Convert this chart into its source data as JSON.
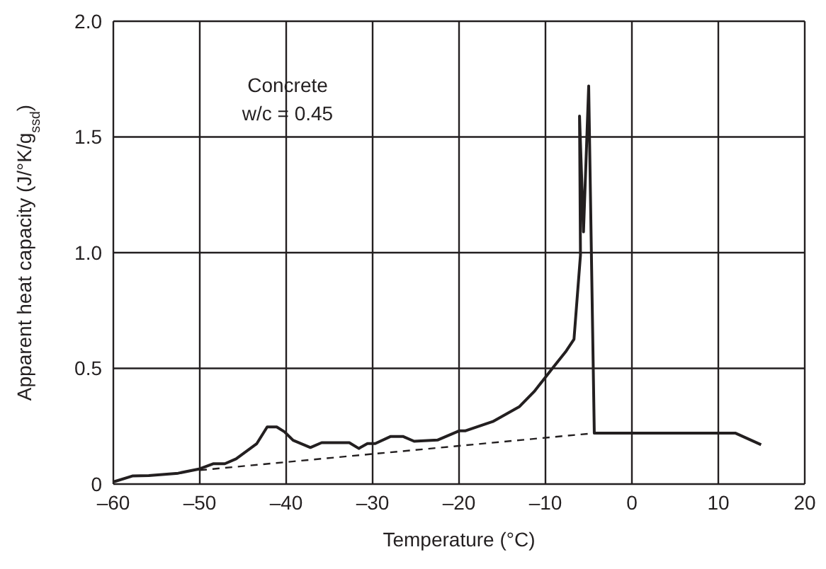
{
  "chart_data": {
    "type": "line",
    "xlabel": "Temperature (°C)",
    "ylabel": "Apparent heat capacity (J/°K/g$_{ssd}$)",
    "annotations": [
      "Concrete",
      "w/c = 0.45"
    ],
    "xlim": [
      -60,
      20
    ],
    "xticks": [
      {
        "value": -60,
        "label": "–60"
      },
      {
        "value": -50,
        "label": "–50"
      },
      {
        "value": -40,
        "label": "–40"
      },
      {
        "value": -30,
        "label": "–30"
      },
      {
        "value": -20,
        "label": "–20"
      },
      {
        "value": -10,
        "label": "–10"
      },
      0,
      10,
      20
    ],
    "ylim": [
      0,
      2
    ],
    "yticks": [
      0,
      0.5,
      {
        "value": 1,
        "label": "1.0"
      },
      1.5,
      {
        "value": 2,
        "label": "2.0"
      }
    ],
    "grid": true,
    "marker": "none",
    "series": [
      {
        "color": "#231f20",
        "line_style": "solid",
        "x": [
          -59.95,
          -57.8,
          -55.9,
          -52.5,
          -50,
          -48.4,
          -47.1,
          -45.8,
          -43.4,
          -42.2,
          -41.1,
          -40.2,
          -39.2,
          -37.2,
          -35.9,
          -32.7,
          -31.6,
          -30.6,
          -29.7,
          -27.9,
          -26.5,
          -25.2,
          -22.5,
          -20,
          -19.3,
          -16.1,
          -13,
          -11.3,
          -9.2,
          -7.6,
          -6.7,
          -5.95,
          -6.06,
          -5.6,
          -5,
          -4.35,
          12,
          14.95
        ],
        "values": [
          0.01,
          0.035,
          0.037,
          0.047,
          0.066,
          0.088,
          0.088,
          0.109,
          0.175,
          0.247,
          0.247,
          0.226,
          0.189,
          0.158,
          0.179,
          0.179,
          0.154,
          0.175,
          0.175,
          0.206,
          0.206,
          0.185,
          0.19,
          0.23,
          0.23,
          0.27,
          0.335,
          0.4,
          0.5,
          0.575,
          0.626,
          0.99,
          1.59,
          1.09,
          1.72,
          0.22,
          0.22,
          0.17
        ]
      },
      {
        "color": "#231f20",
        "line_style": "dashed",
        "x": [
          -50,
          -4.35
        ],
        "values": [
          0.06,
          0.22
        ]
      }
    ]
  }
}
